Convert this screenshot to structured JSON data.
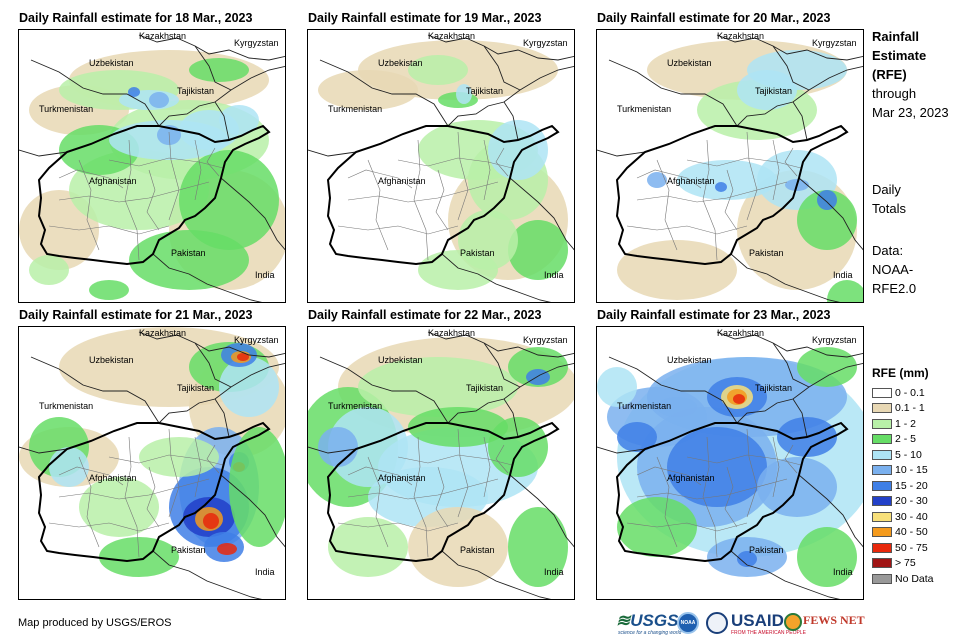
{
  "panels": [
    {
      "title": "Daily Rainfall estimate for 18 Mar., 2023",
      "intensity": "moderate-north"
    },
    {
      "title": "Daily Rainfall estimate for 19 Mar., 2023",
      "intensity": "light"
    },
    {
      "title": "Daily Rainfall estimate for 20 Mar., 2023",
      "intensity": "light-east"
    },
    {
      "title": "Daily Rainfall estimate for 21 Mar., 2023",
      "intensity": "heavy-east"
    },
    {
      "title": "Daily Rainfall estimate for 22 Mar., 2023",
      "intensity": "moderate-wide"
    },
    {
      "title": "Daily Rainfall estimate for 23 Mar., 2023",
      "intensity": "heavy-wide"
    }
  ],
  "labels": {
    "kazakhstan": "Kazakhstan",
    "kyrgyzstan": "Kyrgyzstan",
    "uzbekistan": "Uzbekistan",
    "tajikistan": "Tajikistan",
    "turkmenistan": "Turkmenistan",
    "afghanistan": "Afghanistan",
    "pakistan": "Pakistan",
    "india": "India"
  },
  "side": {
    "title_line1": "Rainfall",
    "title_line2": "Estimate",
    "title_line3": "(RFE)",
    "through": "through",
    "date": "Mar 23, 2023",
    "daily1": "Daily",
    "daily2": "Totals",
    "data1": "Data:",
    "data2": "NOAA-",
    "data3": "RFE2.0"
  },
  "legend": {
    "title": "RFE (mm)",
    "items": [
      {
        "label": "0 - 0.1",
        "color": "#ffffff"
      },
      {
        "label": "0.1 - 1",
        "color": "#e8d8b4"
      },
      {
        "label": "1 - 2",
        "color": "#b8f0a8"
      },
      {
        "label": "2 - 5",
        "color": "#66dd66"
      },
      {
        "label": "5 - 10",
        "color": "#aee4f4"
      },
      {
        "label": "10 - 15",
        "color": "#7ab0ee"
      },
      {
        "label": "15 - 20",
        "color": "#3f7fe6"
      },
      {
        "label": "20 - 30",
        "color": "#2240c8"
      },
      {
        "label": "30 - 40",
        "color": "#f8e07a"
      },
      {
        "label": "40 - 50",
        "color": "#f49a1c"
      },
      {
        "label": "50 - 75",
        "color": "#e8280c"
      },
      {
        "label": "> 75",
        "color": "#a01414"
      },
      {
        "label": "No Data",
        "color": "#999999"
      }
    ]
  },
  "footer": {
    "credit": "Map produced by USGS/EROS",
    "logo_usgs": "USGS",
    "logo_usgs_tag": "science for a changing world",
    "logo_noaa": "NOAA",
    "logo_usaid": "USAID",
    "logo_usaid_tag": "FROM THE AMERICAN PEOPLE",
    "logo_fews": "FEWS NET"
  }
}
